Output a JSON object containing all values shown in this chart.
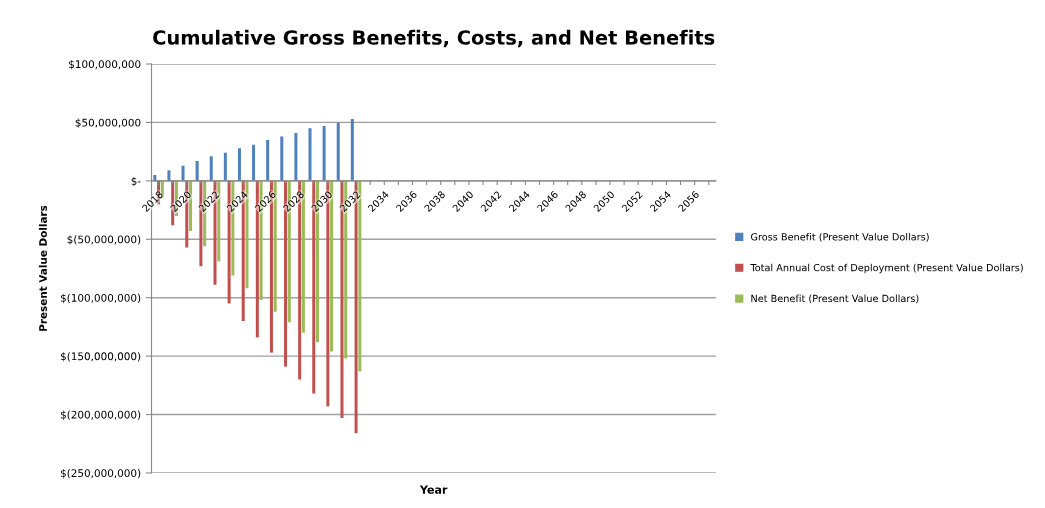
{
  "chart_data": {
    "type": "bar",
    "title": "Cumulative Gross Benefits, Costs, and Net Benefits",
    "xlabel": "Year",
    "ylabel": "Present Value Dollars",
    "categories": [
      "2018",
      null,
      "2020",
      null,
      "2022",
      null,
      "2024",
      null,
      "2026",
      null,
      "2028",
      null,
      "2030",
      null,
      "2032",
      null,
      "2034",
      null,
      "2036",
      null,
      "2038",
      null,
      "2040",
      null,
      "2042",
      null,
      "2044",
      null,
      "2046",
      null,
      "2048",
      null,
      "2050",
      null,
      "2052",
      null,
      "2054",
      null,
      "2056",
      null
    ],
    "series": [
      {
        "name": "Gross Benefit (Present Value Dollars)",
        "color": "#4f81bd",
        "values": [
          5000000,
          9000000,
          13000000,
          17000000,
          21000000,
          24000000,
          28000000,
          31000000,
          35000000,
          38000000,
          41000000,
          45000000,
          47000000,
          50000000,
          53000000,
          null,
          null,
          null,
          null,
          null,
          null,
          null,
          null,
          null,
          null,
          null,
          null,
          null,
          null,
          null,
          null,
          null,
          null,
          null,
          null,
          null,
          null,
          null,
          null,
          null
        ]
      },
      {
        "name": "Total Annual Cost of Deployment (Present Value Dollars)",
        "color": "#c0504d",
        "values": [
          -20000000,
          -38000000,
          -57000000,
          -73000000,
          -89000000,
          -105000000,
          -120000000,
          -134000000,
          -147000000,
          -159000000,
          -170000000,
          -182000000,
          -193000000,
          -203000000,
          -216000000,
          null,
          null,
          null,
          null,
          null,
          null,
          null,
          null,
          null,
          null,
          null,
          null,
          null,
          null,
          null,
          null,
          null,
          null,
          null,
          null,
          null,
          null,
          null,
          null,
          null
        ]
      },
      {
        "name": "Net Benefit (Present Value Dollars)",
        "color": "#9bbb59",
        "values": [
          -15000000,
          -30000000,
          -43000000,
          -56000000,
          -69000000,
          -81000000,
          -92000000,
          -102000000,
          -112000000,
          -121000000,
          -130000000,
          -138000000,
          -146000000,
          -152000000,
          -163000000,
          null,
          null,
          null,
          null,
          null,
          null,
          null,
          null,
          null,
          null,
          null,
          null,
          null,
          null,
          null,
          null,
          null,
          null,
          null,
          null,
          null,
          null,
          null,
          null,
          null
        ]
      }
    ],
    "ylim": [
      -250000000,
      100000000
    ],
    "yticks": [
      {
        "value": 100000000,
        "label": "$100,000,000"
      },
      {
        "value": 50000000,
        "label": "$50,000,000"
      },
      {
        "value": 0,
        "label": "$-"
      },
      {
        "value": -50000000,
        "label": "$(50,000,000)"
      },
      {
        "value": -100000000,
        "label": "$(100,000,000)"
      },
      {
        "value": -150000000,
        "label": "$(150,000,000)"
      },
      {
        "value": -200000000,
        "label": "$(200,000,000)"
      },
      {
        "value": -250000000,
        "label": "$(250,000,000)"
      }
    ],
    "grid": "y",
    "legend": "right"
  }
}
